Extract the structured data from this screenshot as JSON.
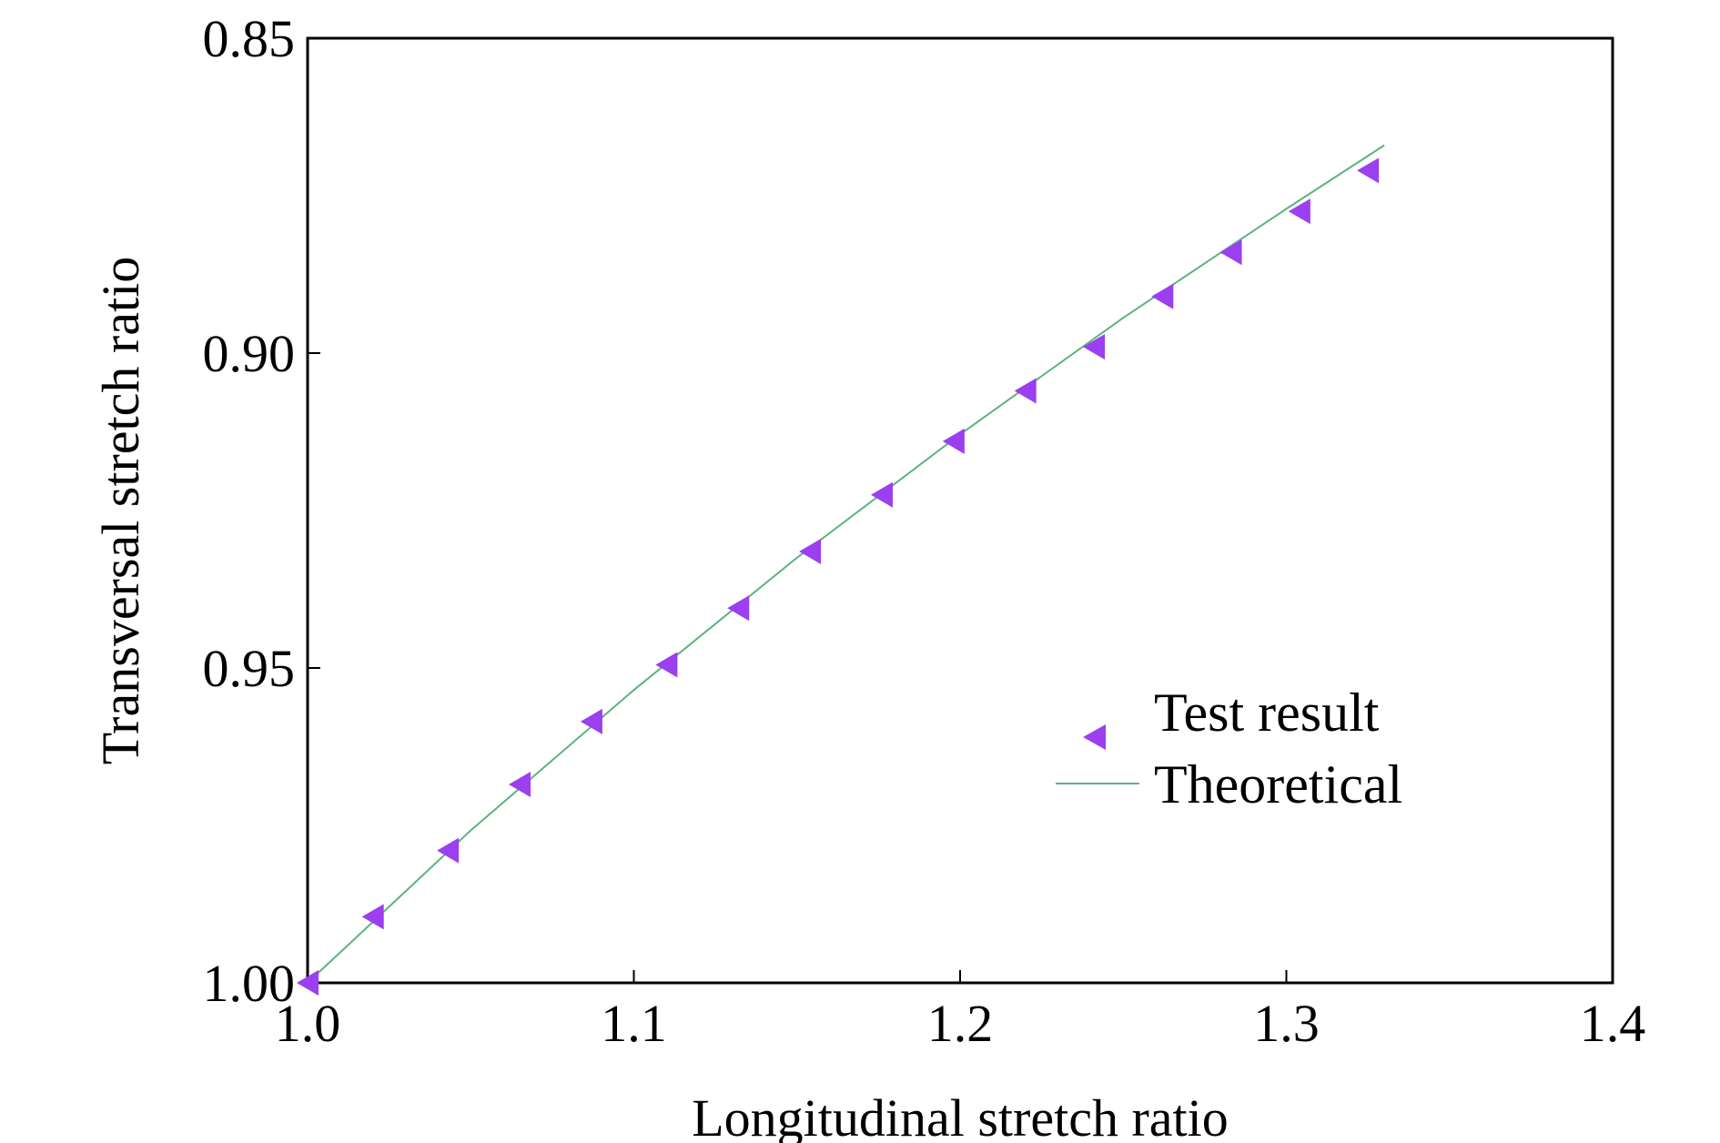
{
  "chart_data": {
    "type": "scatter",
    "xlabel": "Longitudinal stretch ratio",
    "ylabel": "Transversal stretch ratio",
    "xlim": [
      1.0,
      1.4
    ],
    "ylim": [
      1.0,
      0.85
    ],
    "y_axis_inverted": true,
    "x_ticks": [
      "1.0",
      "1.1",
      "1.2",
      "1.3",
      "1.4"
    ],
    "y_ticks": [
      "0.85",
      "0.90",
      "0.95",
      "1.00"
    ],
    "grid": false,
    "legend_position": "center-right",
    "series": [
      {
        "name": "Test result",
        "kind": "scatter",
        "marker": "left-triangle",
        "color": "#9b3ff0",
        "x": [
          1.0,
          1.02,
          1.043,
          1.065,
          1.087,
          1.11,
          1.132,
          1.154,
          1.176,
          1.198,
          1.22,
          1.241,
          1.262,
          1.283,
          1.304,
          1.325
        ],
        "y": [
          1.0,
          0.9895,
          0.979,
          0.9685,
          0.9585,
          0.9495,
          0.9405,
          0.9315,
          0.9225,
          0.914,
          0.906,
          0.899,
          0.891,
          0.884,
          0.8775,
          0.871
        ]
      },
      {
        "name": "Theoretical",
        "kind": "line",
        "color": "#5db37e",
        "x": [
          1.0,
          1.05,
          1.1,
          1.15,
          1.2,
          1.25,
          1.3,
          1.33
        ],
        "y": [
          1.0,
          0.9758,
          0.9535,
          0.9325,
          0.9129,
          0.8944,
          0.8771,
          0.867
        ]
      }
    ]
  }
}
